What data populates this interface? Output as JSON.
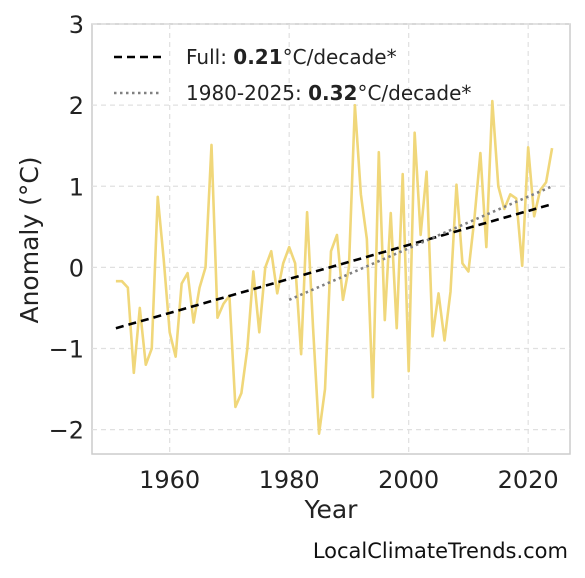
{
  "chart_data": {
    "type": "line",
    "xlabel": "Year",
    "ylabel": "Anomaly (°C)",
    "xlim": [
      1947,
      2027
    ],
    "ylim": [
      -2.3,
      3.0
    ],
    "xticks": [
      1960,
      1980,
      2000,
      2020
    ],
    "yticks": [
      -2,
      -1,
      0,
      1,
      2,
      3
    ],
    "ytick_labels": [
      "−2",
      "−1",
      "0",
      "1",
      "2",
      "3"
    ],
    "xtick_labels": [
      "1960",
      "1980",
      "2000",
      "2020"
    ],
    "grid": true,
    "legend_position": "top-left",
    "series": [
      {
        "color": "#f0d77a",
        "x": [
          1951,
          1952,
          1953,
          1954,
          1955,
          1956,
          1957,
          1958,
          1959,
          1960,
          1961,
          1962,
          1963,
          1964,
          1965,
          1966,
          1967,
          1968,
          1969,
          1970,
          1971,
          1972,
          1973,
          1974,
          1975,
          1976,
          1977,
          1978,
          1979,
          1980,
          1981,
          1982,
          1983,
          1984,
          1985,
          1986,
          1987,
          1988,
          1989,
          1990,
          1991,
          1992,
          1993,
          1994,
          1995,
          1996,
          1997,
          1998,
          1999,
          2000,
          2001,
          2002,
          2003,
          2004,
          2005,
          2006,
          2007,
          2008,
          2009,
          2010,
          2011,
          2012,
          2013,
          2014,
          2015,
          2016,
          2017,
          2018,
          2019,
          2020,
          2021,
          2022,
          2023,
          2024
        ],
        "y": [
          -0.17,
          -0.17,
          -0.25,
          -1.3,
          -0.5,
          -1.2,
          -1.0,
          0.87,
          0.1,
          -0.8,
          -1.1,
          -0.2,
          -0.07,
          -0.68,
          -0.25,
          0.0,
          1.51,
          -0.62,
          -0.45,
          -0.35,
          -1.72,
          -1.55,
          -1.0,
          -0.05,
          -0.8,
          0.0,
          0.2,
          -0.32,
          0.05,
          0.25,
          0.05,
          -1.07,
          0.68,
          -0.75,
          -2.05,
          -1.5,
          0.2,
          0.4,
          -0.4,
          0.0,
          2.0,
          0.9,
          0.35,
          -1.6,
          1.42,
          -0.65,
          0.67,
          -0.75,
          1.15,
          -1.28,
          1.66,
          0.4,
          1.18,
          -0.85,
          -0.32,
          -0.9,
          -0.3,
          1.02,
          0.05,
          -0.05,
          0.6,
          1.41,
          0.25,
          2.05,
          1.0,
          0.72,
          0.9,
          0.85,
          0.02,
          1.48,
          0.63,
          0.95,
          1.05,
          1.47
        ]
      }
    ],
    "trends": [
      {
        "style": "dashed",
        "color": "#000000",
        "label": "Full: ",
        "value": "0.21",
        "unit": "°C/decade*",
        "x": [
          1951,
          2024
        ],
        "y": [
          -0.75,
          0.78
        ]
      },
      {
        "style": "dotted",
        "color": "#808080",
        "label": "1980-2025: ",
        "value": "0.32",
        "unit": "°C/decade*",
        "x": [
          1980,
          2024
        ],
        "y": [
          -0.4,
          1.0
        ]
      }
    ]
  },
  "watermark": "LocalClimateTrends.com"
}
